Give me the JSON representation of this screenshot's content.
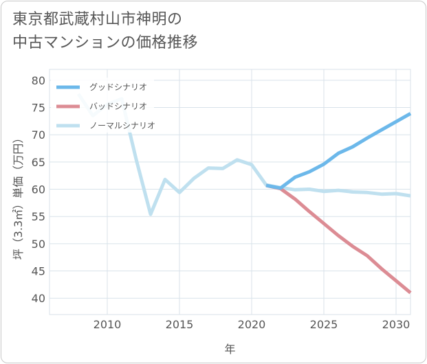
{
  "chart_data": {
    "type": "line",
    "title_lines": [
      "東京都武蔵村山市神明の",
      "中古マンションの価格推移"
    ],
    "xlabel": "年",
    "ylabel": "坪（3.3㎡）単価（万円）",
    "xlim": [
      2006,
      2031
    ],
    "ylim": [
      37,
      82
    ],
    "x_ticks": [
      2010,
      2015,
      2020,
      2025,
      2030
    ],
    "y_ticks": [
      40,
      45,
      50,
      55,
      60,
      65,
      70,
      75,
      80
    ],
    "grid": true,
    "legend_position": "top-left",
    "series": [
      {
        "name": "グッドシナリオ",
        "color": "#6cb8ea",
        "points": [
          [
            2021,
            60.7
          ],
          [
            2022,
            60.2
          ],
          [
            2023,
            62.2
          ],
          [
            2024,
            63.2
          ],
          [
            2025,
            64.6
          ],
          [
            2026,
            66.6
          ],
          [
            2027,
            67.8
          ],
          [
            2028,
            69.4
          ],
          [
            2029,
            70.9
          ],
          [
            2030,
            72.4
          ],
          [
            2031,
            73.9
          ]
        ]
      },
      {
        "name": "バッドシナリオ",
        "color": "#dc8c94",
        "points": [
          [
            2021,
            60.7
          ],
          [
            2022,
            60.1
          ],
          [
            2023,
            58.2
          ],
          [
            2024,
            55.9
          ],
          [
            2025,
            53.7
          ],
          [
            2026,
            51.5
          ],
          [
            2027,
            49.5
          ],
          [
            2028,
            47.8
          ],
          [
            2029,
            45.4
          ],
          [
            2030,
            43.2
          ],
          [
            2031,
            41.0
          ]
        ]
      },
      {
        "name": "ノーマルシナリオ",
        "color": "#bfe0ef",
        "points": [
          [
            2008,
            77.5
          ],
          [
            2009,
            73.5
          ],
          [
            2010,
            75.6
          ],
          [
            2011,
            76.6
          ],
          [
            2012,
            65.5
          ],
          [
            2013,
            55.4
          ],
          [
            2014,
            61.8
          ],
          [
            2015,
            59.4
          ],
          [
            2016,
            62.0
          ],
          [
            2017,
            63.9
          ],
          [
            2018,
            63.8
          ],
          [
            2019,
            65.4
          ],
          [
            2020,
            64.5
          ],
          [
            2021,
            60.8
          ],
          [
            2022,
            60.3
          ],
          [
            2023,
            59.9
          ],
          [
            2024,
            60.0
          ],
          [
            2025,
            59.6
          ],
          [
            2026,
            59.8
          ],
          [
            2027,
            59.5
          ],
          [
            2028,
            59.4
          ],
          [
            2029,
            59.1
          ],
          [
            2030,
            59.2
          ],
          [
            2031,
            58.8
          ]
        ]
      }
    ]
  }
}
